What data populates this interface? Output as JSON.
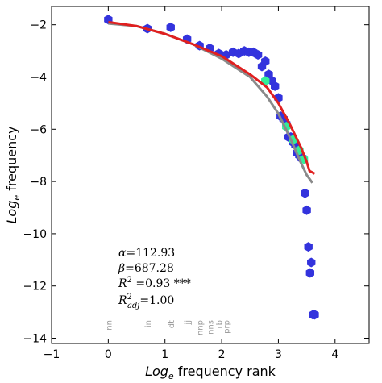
{
  "chart_data": {
    "type": "scatter",
    "xlim": [
      -1,
      4.6
    ],
    "ylim": [
      -14.2,
      -1.3
    ],
    "x_ticks": [
      -1,
      0,
      1,
      2,
      3,
      4
    ],
    "y_ticks": [
      -2,
      -4,
      -6,
      -8,
      -10,
      -12,
      -14
    ],
    "x_tick_labels": [
      "−1",
      "0",
      "1",
      "2",
      "3",
      "4"
    ],
    "y_tick_labels": [
      "−2",
      "−4",
      "−6",
      "−8",
      "−10",
      "−12",
      "−14"
    ],
    "xlabel": {
      "base": "Log",
      "sub": "e",
      "rest": " frequency rank"
    },
    "ylabel": {
      "base": "Log",
      "sub": "e",
      "rest": " frequency"
    },
    "grid": false,
    "points_blue": {
      "color": "#3333dd",
      "x": [
        0.0,
        0.69,
        1.1,
        1.39,
        1.61,
        1.79,
        1.95,
        2.08,
        2.2,
        2.3,
        2.4,
        2.48,
        2.56,
        2.64,
        2.71,
        2.77,
        2.83,
        2.89,
        2.94,
        3.0,
        3.04,
        3.09,
        3.14,
        3.18,
        3.22,
        3.26,
        3.3,
        3.33,
        3.37,
        3.4,
        3.43,
        3.47,
        3.5,
        3.53,
        3.56,
        3.58,
        3.61,
        3.64
      ],
      "y": [
        -1.8,
        -2.15,
        -2.1,
        -2.55,
        -2.8,
        -2.9,
        -3.1,
        -3.15,
        -3.05,
        -3.1,
        -3.0,
        -3.05,
        -3.05,
        -3.15,
        -3.6,
        -3.4,
        -3.9,
        -4.15,
        -4.35,
        -4.8,
        -5.5,
        -5.6,
        -5.8,
        -6.3,
        -6.3,
        -6.5,
        -6.6,
        -6.9,
        -7.0,
        -7.1,
        -7.1,
        -8.45,
        -9.1,
        -10.5,
        -11.5,
        -11.1,
        -13.1,
        -13.1
      ]
    },
    "points_green": {
      "color": "#33ee99",
      "x": [
        2.77,
        3.14,
        3.26,
        3.37,
        3.45
      ],
      "y": [
        -4.15,
        -5.9,
        -6.4,
        -6.8,
        -7.15
      ]
    },
    "fit_red": {
      "color": "#e02020",
      "x": [
        0,
        0.5,
        1.0,
        1.5,
        2.0,
        2.5,
        2.8,
        3.0,
        3.2,
        3.4,
        3.5,
        3.55,
        3.6,
        3.64
      ],
      "y": [
        -1.9,
        -2.05,
        -2.35,
        -2.75,
        -3.2,
        -3.9,
        -4.4,
        -5.0,
        -5.8,
        -6.7,
        -7.25,
        -7.6,
        -7.65,
        -7.7
      ]
    },
    "fit_gray": {
      "color": "#8a8a8a",
      "x": [
        0,
        0.5,
        1.0,
        1.5,
        2.0,
        2.5,
        2.8,
        3.0,
        3.2,
        3.4,
        3.5,
        3.6
      ],
      "y": [
        -1.95,
        -2.05,
        -2.35,
        -2.75,
        -3.3,
        -4.0,
        -4.75,
        -5.4,
        -6.3,
        -7.3,
        -7.75,
        -8.05
      ]
    },
    "stats": [
      {
        "sym": "α",
        "sup": "",
        "sub": "",
        "val": "=112.93"
      },
      {
        "sym": "β",
        "sup": "",
        "sub": "",
        "val": "=687.28"
      },
      {
        "sym": "R",
        "sup": "2",
        "sub": "",
        "val": " =0.93 ***"
      },
      {
        "sym": "R",
        "sup": "2",
        "sub": "adj",
        "val": "=1.00"
      }
    ],
    "tags": [
      {
        "label": "nn",
        "x": 0.0
      },
      {
        "label": "in",
        "x": 0.69
      },
      {
        "label": "dt",
        "x": 1.1
      },
      {
        "label": "jj",
        "x": 1.39
      },
      {
        "label": "nnp",
        "x": 1.61
      },
      {
        "label": "nns",
        "x": 1.79
      },
      {
        "label": "rb",
        "x": 1.95
      },
      {
        "label": "prp",
        "x": 2.08
      }
    ]
  }
}
